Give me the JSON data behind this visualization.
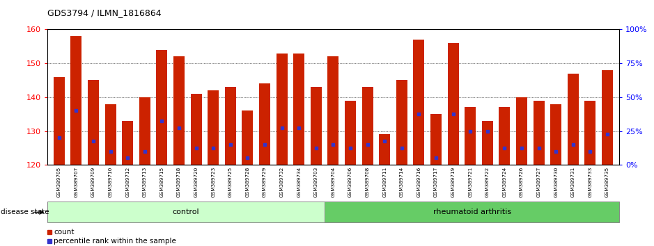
{
  "title": "GDS3794 / ILMN_1816864",
  "samples": [
    "GSM389705",
    "GSM389707",
    "GSM389709",
    "GSM389710",
    "GSM389712",
    "GSM389713",
    "GSM389715",
    "GSM389718",
    "GSM389720",
    "GSM389723",
    "GSM389725",
    "GSM389728",
    "GSM389729",
    "GSM389732",
    "GSM389734",
    "GSM389703",
    "GSM389704",
    "GSM389706",
    "GSM389708",
    "GSM389711",
    "GSM389714",
    "GSM389716",
    "GSM389717",
    "GSM389719",
    "GSM389721",
    "GSM389722",
    "GSM389724",
    "GSM389726",
    "GSM389727",
    "GSM389730",
    "GSM389731",
    "GSM389733",
    "GSM389735"
  ],
  "counts": [
    146,
    158,
    145,
    138,
    133,
    140,
    154,
    152,
    141,
    142,
    143,
    136,
    144,
    153,
    153,
    143,
    152,
    139,
    143,
    129,
    145,
    157,
    135,
    156,
    137,
    133,
    137,
    140,
    139,
    138,
    147,
    139,
    148
  ],
  "percentile_ranks": [
    128,
    136,
    127,
    124,
    122,
    124,
    133,
    131,
    125,
    125,
    126,
    122,
    126,
    131,
    131,
    125,
    126,
    125,
    126,
    127,
    125,
    135,
    122,
    135,
    130,
    130,
    125,
    125,
    125,
    124,
    126,
    124,
    129
  ],
  "bar_color": "#cc2200",
  "dot_color": "#3333cc",
  "ymin": 120,
  "ymax": 160,
  "yticks": [
    120,
    130,
    140,
    150,
    160
  ],
  "right_yticks": [
    0,
    25,
    50,
    75,
    100
  ],
  "control_count": 16,
  "control_label": "control",
  "ra_label": "rheumatoid arthritis",
  "control_color": "#ccffcc",
  "ra_color": "#66cc66",
  "disease_label": "disease state",
  "legend_count": "count",
  "legend_percentile": "percentile rank within the sample",
  "bar_width": 0.65
}
